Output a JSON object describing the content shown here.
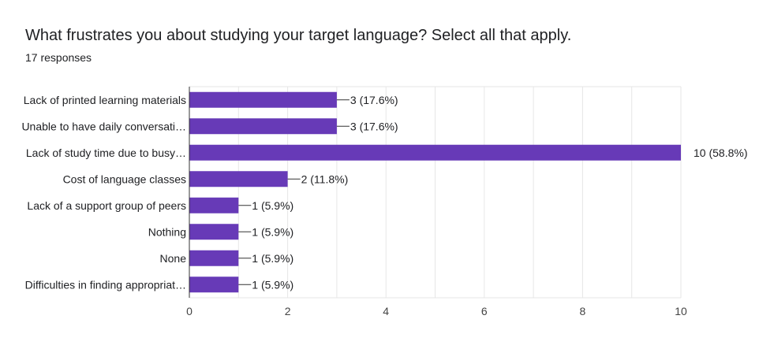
{
  "header": {
    "title": "What frustrates you about studying your target language? Select all that apply.",
    "responses": "17 responses"
  },
  "colors": {
    "bar": "#673ab7",
    "grid": "#e6e6e6",
    "axis": "#333333",
    "text": "#202124",
    "tick_text": "#444444"
  },
  "chart_data": {
    "type": "bar",
    "orientation": "horizontal",
    "categories": [
      "Lack of printed learning materials",
      "Unable to have daily conversati…",
      "Lack of study time due to busy…",
      "Cost of language classes",
      "Lack of a support group of peers",
      "Nothing",
      "None",
      "Difficulties in finding appropriat…"
    ],
    "values": [
      3,
      3,
      10,
      2,
      1,
      1,
      1,
      1
    ],
    "data_labels": [
      "3 (17.6%)",
      "3 (17.6%)",
      "10 (58.8%)",
      "2 (11.8%)",
      "1 (5.9%)",
      "1 (5.9%)",
      "1 (5.9%)",
      "1 (5.9%)"
    ],
    "xlim": [
      0,
      10
    ],
    "xticks": [
      0,
      2,
      4,
      6,
      8,
      10
    ],
    "xtick_labels": [
      "0",
      "2",
      "4",
      "6",
      "8",
      "10"
    ],
    "grid": true
  }
}
